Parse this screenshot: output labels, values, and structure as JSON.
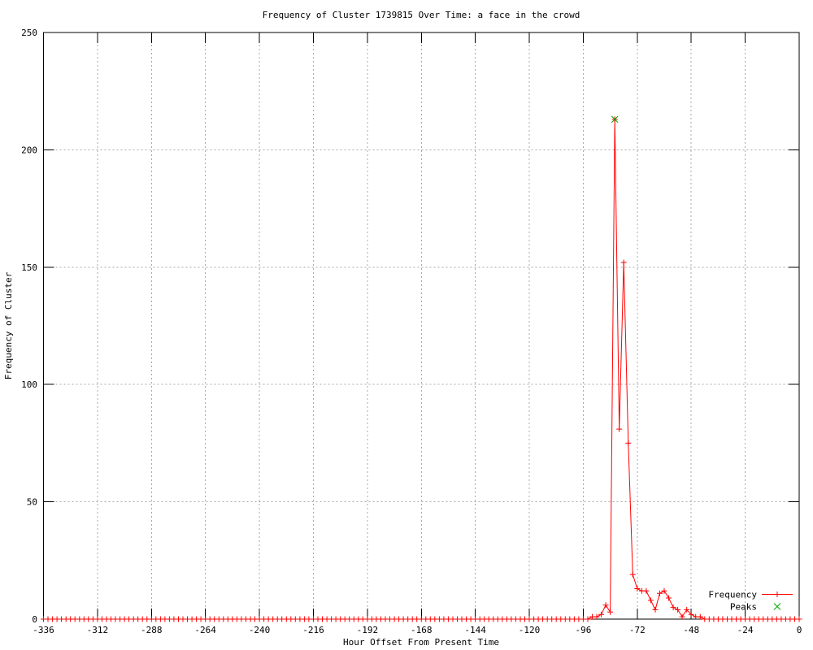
{
  "chart_data": {
    "type": "line",
    "title": "Frequency of Cluster 1739815 Over Time: a face in the crowd",
    "xlabel": "Hour Offset From Present Time",
    "ylabel": "Frequency of Cluster",
    "xlim": [
      -336,
      0
    ],
    "ylim": [
      0,
      250
    ],
    "xticks": [
      -336,
      -312,
      -288,
      -264,
      -240,
      -216,
      -192,
      -168,
      -144,
      -120,
      -96,
      -72,
      -48,
      -24,
      0
    ],
    "yticks": [
      0,
      50,
      100,
      150,
      200,
      250
    ],
    "grid": true,
    "grid_style": "dotted",
    "legend_position": "inside-bottom-right",
    "series": [
      {
        "name": "Frequency",
        "color": "#ff0000",
        "marker": "plus",
        "style": "line-with-markers",
        "x_start": -336,
        "x_end": 0,
        "x_step": 2,
        "default_value": 0,
        "nonzero_values": {
          "-92": 1,
          "-90": 1,
          "-88": 2,
          "-86": 6,
          "-84": 3,
          "-82": 213,
          "-80": 81,
          "-78": 152,
          "-76": 75,
          "-74": 19,
          "-72": 13,
          "-70": 12,
          "-68": 12,
          "-66": 8,
          "-64": 4,
          "-62": 11,
          "-60": 12,
          "-58": 9,
          "-56": 5,
          "-54": 4,
          "-52": 1,
          "-50": 4,
          "-48": 2,
          "-46": 1,
          "-44": 1
        }
      },
      {
        "name": "Peaks",
        "color": "#00a800",
        "marker": "cross",
        "style": "markers-only",
        "points": [
          {
            "x": -82,
            "y": 213
          }
        ]
      }
    ],
    "colors": {
      "background": "#ffffff",
      "axis": "#000000",
      "grid": "#a8a8a8",
      "text": "#000000"
    }
  }
}
